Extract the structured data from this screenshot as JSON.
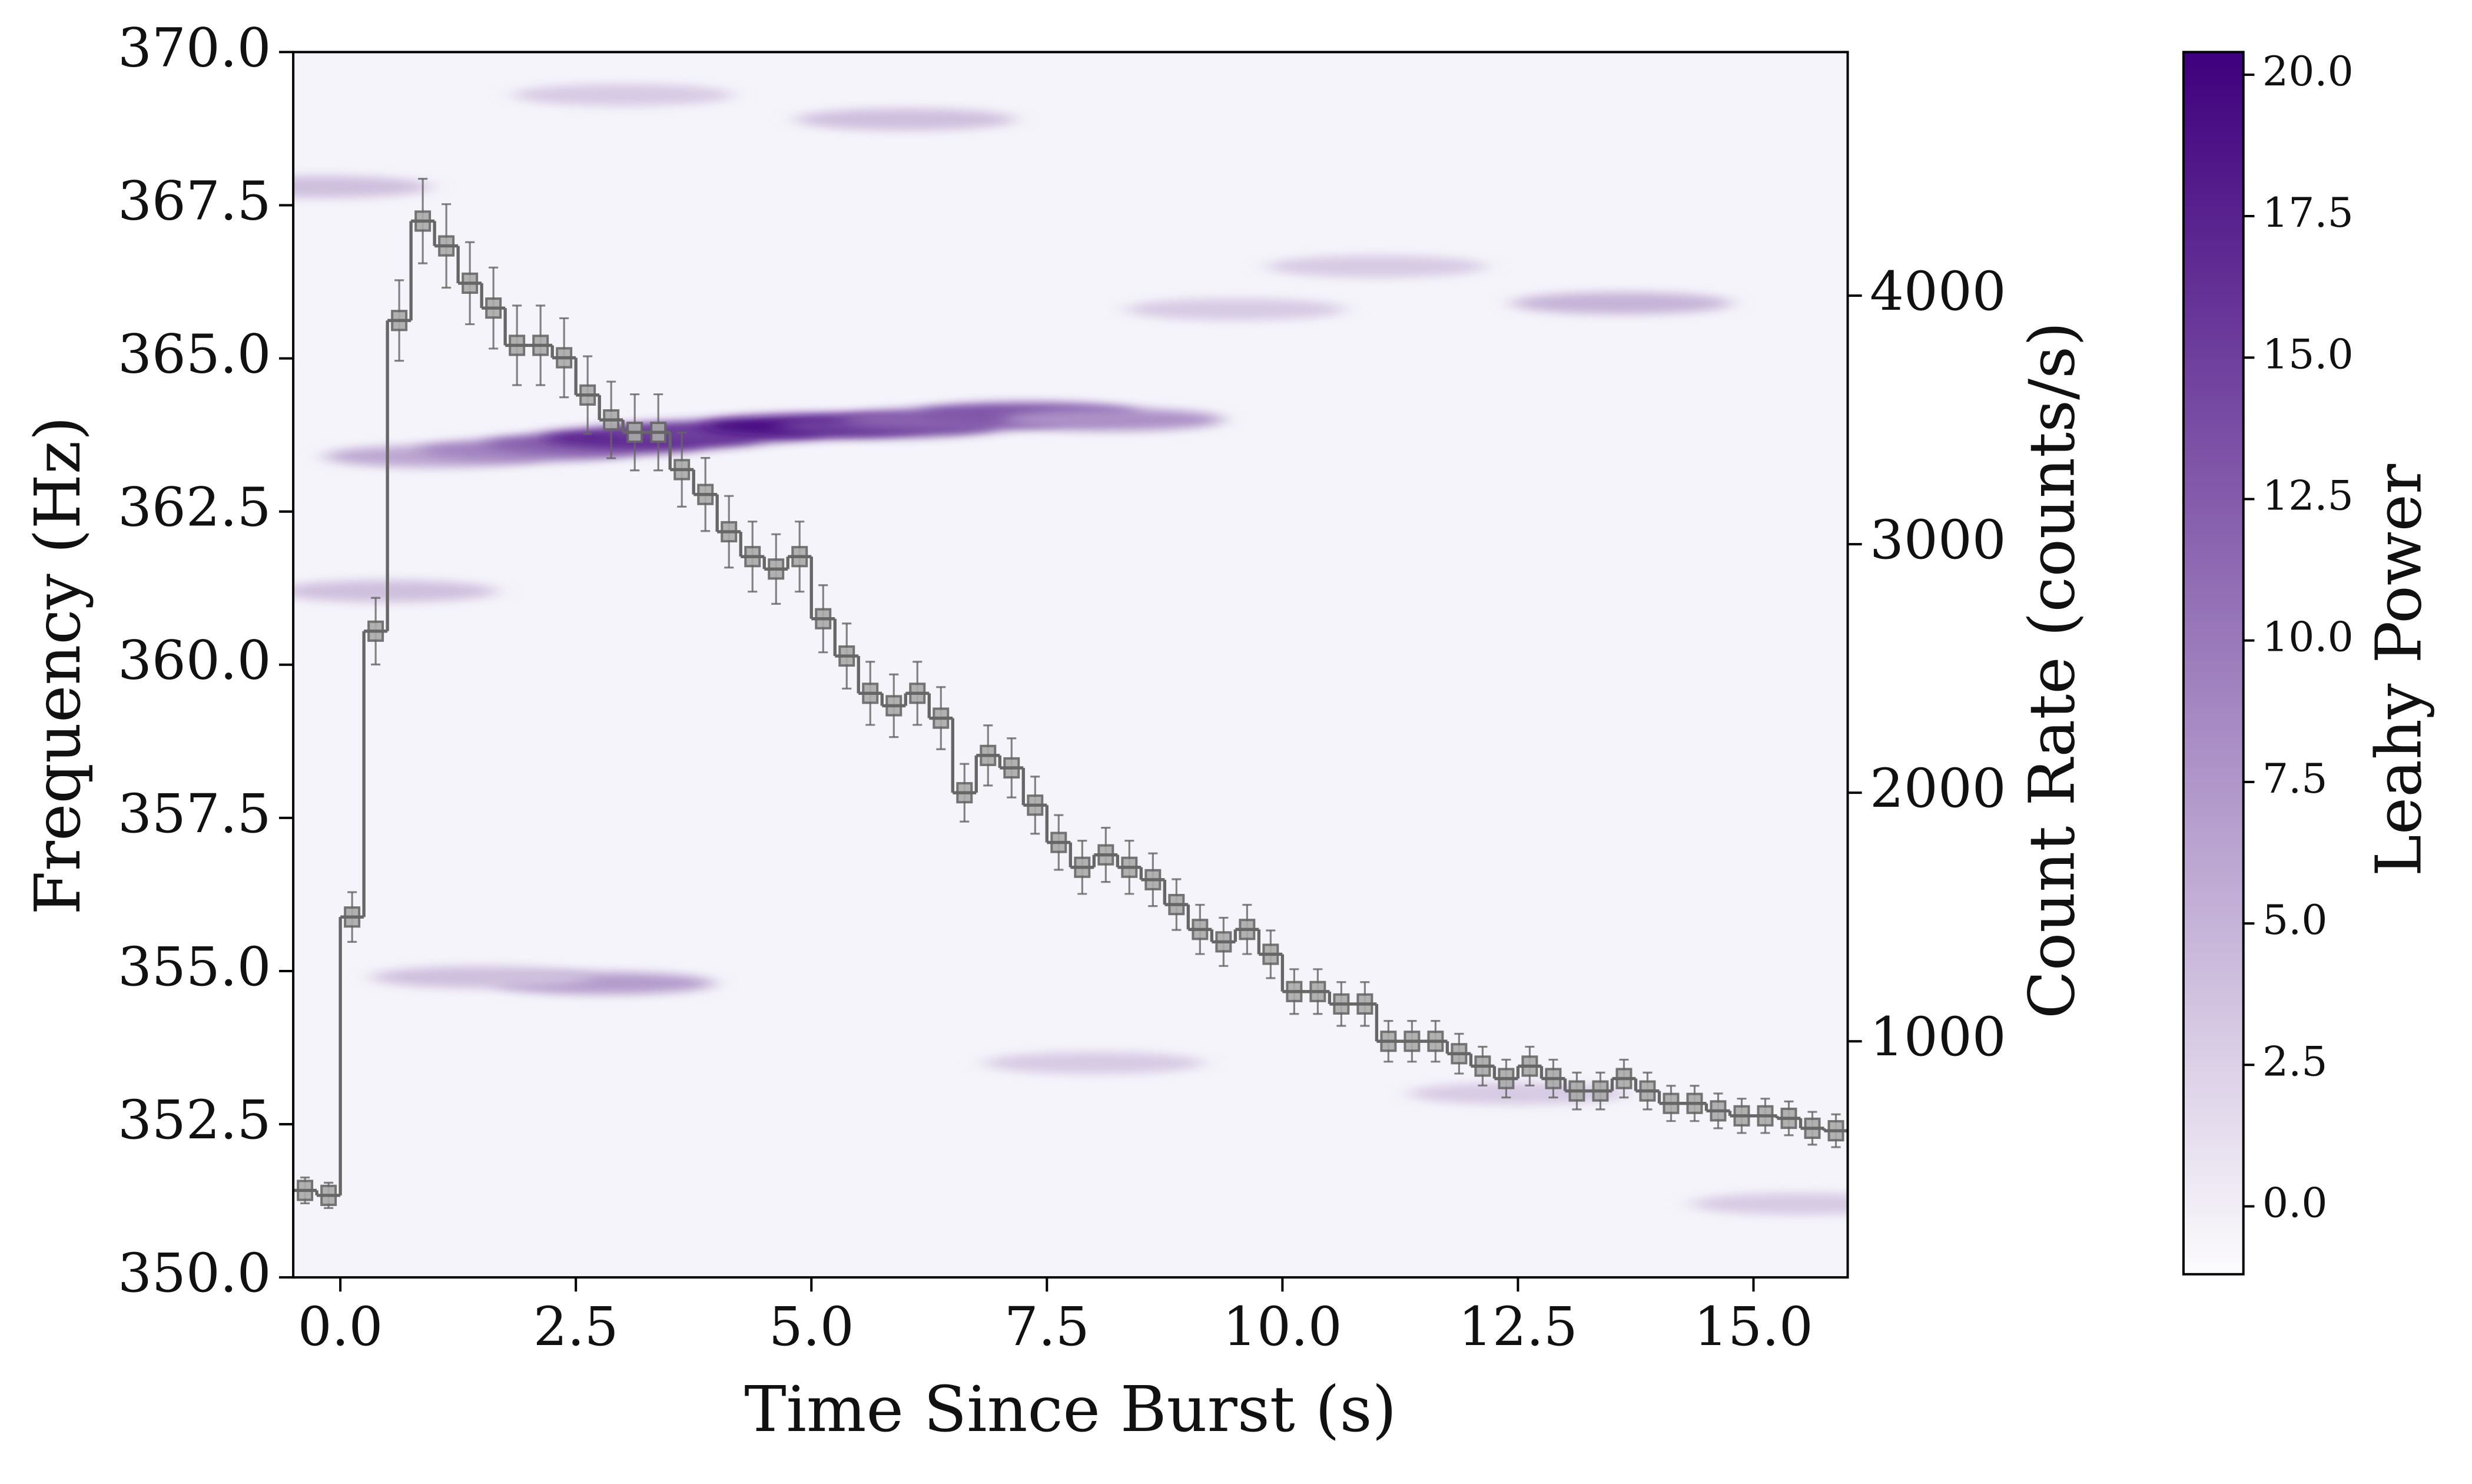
{
  "chart_data": {
    "type": "spectrogram",
    "x_label": "Time Since Burst (s)",
    "y_label": "Frequency (Hz)",
    "y2_label": "Count Rate (counts/s)",
    "colorbar_label": "Leahy Power",
    "xlim": [
      -0.5,
      16
    ],
    "ylim": [
      350,
      370
    ],
    "y2lim": [
      50,
      4980
    ],
    "clim": [
      -1.2,
      20.4
    ],
    "xticks": [
      {
        "value": 0,
        "label": "0.0"
      },
      {
        "value": 2.5,
        "label": "2.5"
      },
      {
        "value": 5,
        "label": "5.0"
      },
      {
        "value": 7.5,
        "label": "7.5"
      },
      {
        "value": 10,
        "label": "10.0"
      },
      {
        "value": 12.5,
        "label": "12.5"
      },
      {
        "value": 15,
        "label": "15.0"
      }
    ],
    "yticks": [
      {
        "value": 350,
        "label": "350.0"
      },
      {
        "value": 352.5,
        "label": "352.5"
      },
      {
        "value": 355,
        "label": "355.0"
      },
      {
        "value": 357.5,
        "label": "357.5"
      },
      {
        "value": 360,
        "label": "360.0"
      },
      {
        "value": 362.5,
        "label": "362.5"
      },
      {
        "value": 365,
        "label": "365.0"
      },
      {
        "value": 367.5,
        "label": "367.5"
      },
      {
        "value": 370,
        "label": "370.0"
      }
    ],
    "y2ticks": [
      1000,
      2000,
      3000,
      4000
    ],
    "cticks": [
      {
        "value": 0,
        "label": "0.0"
      },
      {
        "value": 2.5,
        "label": "2.5"
      },
      {
        "value": 5,
        "label": "5.0"
      },
      {
        "value": 7.5,
        "label": "7.5"
      },
      {
        "value": 10,
        "label": "10.0"
      },
      {
        "value": 12.5,
        "label": "12.5"
      },
      {
        "value": 15,
        "label": "15.0"
      },
      {
        "value": 17.5,
        "label": "17.5"
      },
      {
        "value": 20,
        "label": "20.0"
      }
    ],
    "colormap": [
      "#fcfbfd",
      "#3f007d"
    ],
    "spectrogram": {
      "time": [
        1.0,
        2.0,
        2.7,
        3.3,
        4.0,
        5.0,
        5.8,
        6.5,
        7.3,
        8.2,
        2.8,
        1.5,
        13.6,
        9.5,
        0.5,
        3.0,
        12.5,
        15.5,
        6.0,
        -0.2,
        8.0,
        11.0
      ],
      "frequency": [
        363.4,
        363.5,
        363.6,
        363.7,
        363.8,
        363.9,
        363.9,
        364.0,
        364.1,
        364.0,
        354.8,
        354.9,
        365.9,
        365.8,
        361.2,
        369.3,
        353.0,
        351.2,
        368.9,
        367.8,
        353.5,
        366.5
      ],
      "power": [
        6,
        9,
        12,
        17,
        15,
        19,
        15,
        12,
        13,
        8,
        7,
        4,
        5,
        3,
        4,
        3,
        3,
        3,
        4,
        4,
        3,
        3
      ]
    },
    "light_curve": {
      "color": "#666666",
      "axis": "y2",
      "bins": [
        -0.5,
        -0.25,
        0,
        0.25,
        0.5,
        0.75,
        1,
        1.25,
        1.5,
        1.75,
        2,
        2.25,
        2.5,
        2.75,
        3,
        3.25,
        3.5,
        3.75,
        4,
        4.25,
        4.5,
        4.75,
        5,
        5.25,
        5.5,
        5.75,
        6,
        6.25,
        6.5,
        6.75,
        7,
        7.25,
        7.5,
        7.75,
        8,
        8.25,
        8.5,
        8.75,
        9,
        9.25,
        9.5,
        9.75,
        10,
        10.25,
        10.5,
        10.75,
        11,
        11.25,
        11.5,
        11.75,
        12,
        12.25,
        12.5,
        12.75,
        13,
        13.25,
        13.5,
        13.75,
        14,
        14.25,
        14.5,
        14.75,
        15,
        15.25,
        15.5,
        15.75,
        16
      ],
      "values": [
        400,
        380,
        1500,
        2650,
        3900,
        4300,
        4200,
        4050,
        3950,
        3800,
        3800,
        3750,
        3600,
        3500,
        3450,
        3450,
        3300,
        3200,
        3050,
        2950,
        2900,
        2950,
        2700,
        2550,
        2400,
        2350,
        2400,
        2300,
        2000,
        2150,
        2100,
        1950,
        1800,
        1700,
        1750,
        1700,
        1650,
        1550,
        1450,
        1400,
        1450,
        1350,
        1200,
        1200,
        1150,
        1150,
        1000,
        1000,
        1000,
        950,
        900,
        850,
        900,
        850,
        800,
        800,
        850,
        800,
        750,
        750,
        720,
        700,
        700,
        690,
        650,
        640
      ],
      "errors": [
        52,
        51,
        100,
        134,
        162,
        170,
        168,
        165,
        163,
        160,
        160,
        159,
        156,
        154,
        153,
        153,
        149,
        147,
        144,
        141,
        140,
        141,
        135,
        131,
        127,
        126,
        127,
        125,
        116,
        121,
        119,
        115,
        110,
        107,
        109,
        107,
        106,
        102,
        99,
        97,
        99,
        96,
        90,
        90,
        88,
        88,
        82,
        82,
        82,
        80,
        78,
        76,
        78,
        76,
        74,
        74,
        76,
        74,
        71,
        71,
        70,
        69,
        69,
        68,
        66,
        66
      ]
    }
  }
}
